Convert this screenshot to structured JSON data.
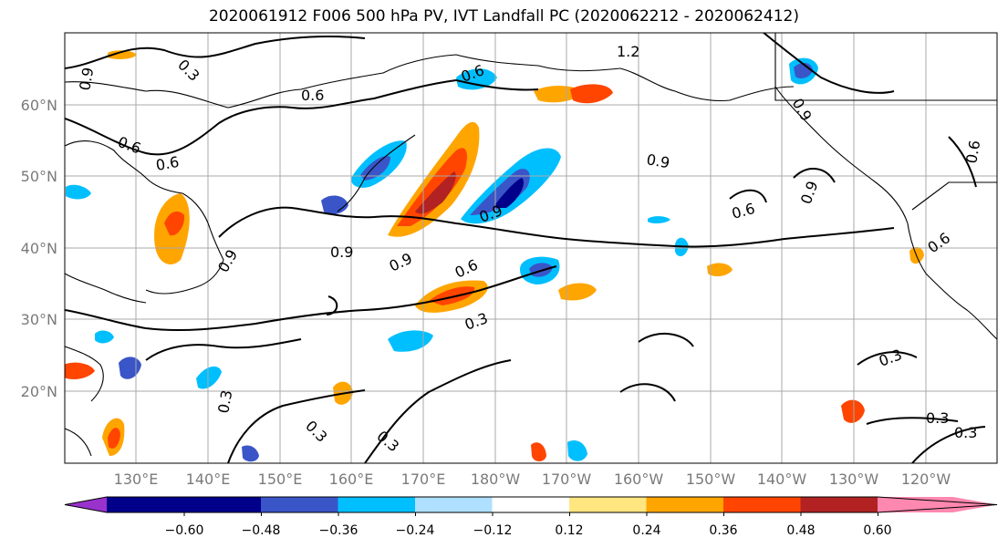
{
  "title": "2020061912 F006 500 hPa PV, IVT Landfall PC (2020062212 - 2020062412)",
  "lat_labels": [
    "60°N",
    "50°N",
    "40°N",
    "30°N",
    "20°N"
  ],
  "lon_labels": [
    "130°E",
    "140°E",
    "150°E",
    "160°E",
    "170°E",
    "180°W",
    "170°W",
    "160°W",
    "150°W",
    "140°W",
    "130°W",
    "120°W"
  ],
  "contour_labels": [
    "0.9",
    "0.3",
    "0.6",
    "0.6",
    "0.6",
    "0.9",
    "0.9",
    "0.6",
    "1.2",
    "0.6",
    "0.9",
    "0.9",
    "0.9",
    "0.9",
    "0.6",
    "0.6",
    "0.3",
    "0.3",
    "0.3",
    "0.3",
    "0.3",
    "0.3",
    "0.3",
    "0.6",
    "0.9"
  ],
  "colorbar": {
    "tick_labels": [
      "−0.60",
      "−0.48",
      "−0.36",
      "−0.24",
      "−0.12",
      "0.12",
      "0.24",
      "0.36",
      "0.48",
      "0.60"
    ],
    "colors": [
      "#9932cc",
      "#00008b",
      "#3a55c8",
      "#00bfff",
      "#b0e0ff",
      "#ffffff",
      "#ffe680",
      "#ffa500",
      "#ff4500",
      "#b22222",
      "#ff88b0"
    ]
  }
}
